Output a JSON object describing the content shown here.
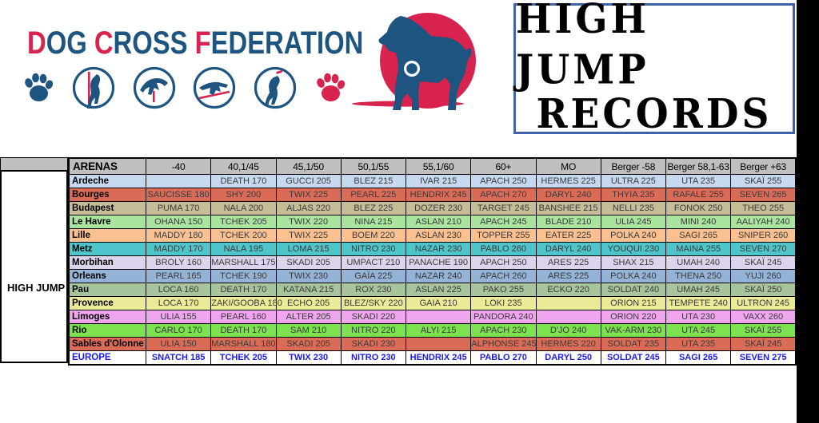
{
  "header": {
    "logo": {
      "words": [
        {
          "first": "D",
          "rest": "OG"
        },
        {
          "first": "C",
          "rest": "ROSS"
        },
        {
          "first": "F",
          "rest": "EDERATION"
        }
      ],
      "icons": [
        "paw-icon",
        "dog-pole-jump-icon",
        "dog-high-jump-icon",
        "dog-long-jump-icon",
        "dog-disc-catch-icon",
        "paw-icon-red"
      ]
    },
    "emblem": "dog-medal-emblem",
    "title": {
      "line1": "HIGH JUMP",
      "line2": "RECORDS"
    }
  },
  "colors": {
    "brand_blue": "#1E5480",
    "brand_red": "#D7234E",
    "title_border": "#3D63A8",
    "header_gray": "#BFBFBF",
    "europe_blue": "#1A1AF0"
  },
  "table": {
    "corner_label": "HIGH JUMP",
    "arena_header": "ARENAS",
    "columns": [
      "-40",
      "40,1/45",
      "45,1/50",
      "50,1/55",
      "55,1/60",
      "60+",
      "MO",
      "Berger -58",
      "Berger 58,1-63",
      "Berger +63"
    ],
    "rows": [
      {
        "arena": "Ardeche",
        "color": "#C6D9F0",
        "values": [
          "",
          "DEATH 170",
          "GUCCI 205",
          "BLEZ 215",
          "IVAR 215",
          "APACH 250",
          "HERMES 225",
          "ULTRA 225",
          "UTA 235",
          "SKAÏ 255"
        ]
      },
      {
        "arena": "Bourges",
        "color": "#DA6C57",
        "values": [
          "SAUCISSE 180",
          "SHY 200",
          "TWIX 225",
          "PEARL 225",
          "HENDRIX 245",
          "APACH 270",
          "DARYL 240",
          "THYIA 235",
          "RAFALE 255",
          "SEVEN 265"
        ]
      },
      {
        "arena": "Budapest",
        "color": "#C4BD97",
        "values": [
          "PUMA 170",
          "NALA 200",
          "ALJAS 220",
          "BLEZ 225",
          "DOZER 230",
          "TARGET 245",
          "BANSHEE 215",
          "NELLI 235",
          "FONOK 250",
          "THEO 255"
        ]
      },
      {
        "arena": "Le Havre",
        "color": "#A9E59F",
        "values": [
          "OHANA 150",
          "TCHEK 205",
          "TWIX 220",
          "NINA 215",
          "ASLAN 210",
          "APACH 245",
          "BLADE 210",
          "ULIA 245",
          "MINI 240",
          "AALIYAH 240"
        ]
      },
      {
        "arena": "Lille",
        "color": "#FAC090",
        "values": [
          "MADDY 180",
          "TCHEK 200",
          "TWIX 225",
          "BOEM 220",
          "ASLAN 230",
          "TOPPER 255",
          "EATER 225",
          "POLKA 240",
          "SAGI 265",
          "SNIPER 260"
        ]
      },
      {
        "arena": "Metz",
        "color": "#4EC5CB",
        "values": [
          "MADDY 170",
          "NALA 195",
          "LOMA 215",
          "NITRO 230",
          "NAZAR 230",
          "PABLO 260",
          "DARYL 240",
          "YOUQUI 230",
          "MAINA 255",
          "SEVEN 270"
        ]
      },
      {
        "arena": "Morbihan",
        "color": "#DCD4EC",
        "values": [
          "BROLY 160",
          "MARSHALL 175",
          "SKADI 205",
          "UMPACT 210",
          "PANACHE 190",
          "APACH 250",
          "ARES 225",
          "SHAX 215",
          "UMAH 240",
          "SKAÏ 245"
        ]
      },
      {
        "arena": "Orleans",
        "color": "#95B3D7",
        "values": [
          "PEARL 165",
          "TCHEK 190",
          "TWIX 230",
          "GAÏA 225",
          "NAZAR 240",
          "APACH 260",
          "ARES 225",
          "POLKA 240",
          "THENA 250",
          "YUJI 260"
        ]
      },
      {
        "arena": "Pau",
        "color": "#A8C49C",
        "values": [
          "LOCA 160",
          "DEATH 170",
          "KATANA 215",
          "ROX 230",
          "ASLAN 225",
          "PAKO 255",
          "ECKO 220",
          "SOLDAT 240",
          "UMAH 245",
          "SKAÏ 250"
        ]
      },
      {
        "arena": "Provence",
        "color": "#EAEA99",
        "values": [
          "LOCA 170",
          "ZAKI/GOOBA 180",
          "ECHO 205",
          "BLEZ/SKY 220",
          "GAIA 210",
          "LOKI 235",
          "",
          "ORION 215",
          "TEMPETE 240",
          "ULTRON 245"
        ]
      },
      {
        "arena": "Limoges",
        "color": "#F0A6EE",
        "values": [
          "ULIA 155",
          "PEARL 160",
          "ALTER 205",
          "SKADI 220",
          "",
          "PANDORA 240",
          "",
          "ORION 220",
          "UTA 230",
          "VAXX 260"
        ]
      },
      {
        "arena": "Rio",
        "color": "#7CE250",
        "values": [
          "CARLO 170",
          "DEATH 170",
          "SAM 210",
          "NITRO 220",
          "ALYI 215",
          "APACH 230",
          "D'JO 240",
          "VAK-ARM 230",
          "UTA 245",
          "SKAÏ 255"
        ]
      },
      {
        "arena": "Sables d'Olonne",
        "color": "#DA6C57",
        "values": [
          "ULIA 150",
          "MARSHALL 180",
          "SKADI 205",
          "SKADI 230",
          "",
          "ALPHONSE 245",
          "HERMES 220",
          "SOLDAT 235",
          "UTA 235",
          "SKAÏ 245"
        ]
      },
      {
        "arena": "EUROPE",
        "color": "#FFFFFF",
        "text_color": "#1A1AF0",
        "bold": true,
        "values": [
          "SNATCH 185",
          "TCHEK 205",
          "TWIX 230",
          "NITRO 230",
          "HENDRIX 245",
          "PABLO 270",
          "DARYL 250",
          "SOLDAT 245",
          "SAGI 265",
          "SEVEN 275"
        ]
      }
    ]
  }
}
